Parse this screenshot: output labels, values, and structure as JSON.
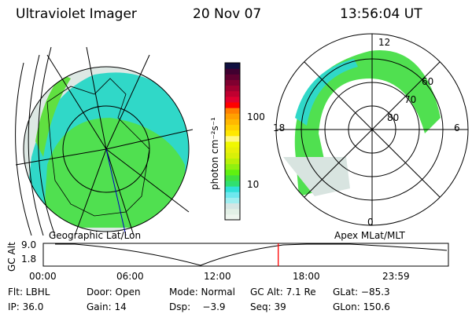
{
  "header": {
    "title": "Ultraviolet Imager",
    "date": "20 Nov 07",
    "time": "13:56:04 UT"
  },
  "colorbar": {
    "label": "photon cm⁻²s⁻¹",
    "ticks": [
      "100",
      "10"
    ],
    "colors": [
      "#eef5ee",
      "#e2f0e6",
      "#d4e6e4",
      "#9eeef0",
      "#6ee8ee",
      "#30e0d8",
      "#30e070",
      "#40e040",
      "#60f010",
      "#90f010",
      "#b8f008",
      "#d8f008",
      "#e8f008",
      "#f0f800",
      "#fff880",
      "#ffe800",
      "#ffd000",
      "#ffb800",
      "#ffa000",
      "#ff8000",
      "#ff0000",
      "#e00030",
      "#c00030",
      "#a00030",
      "#800030",
      "#600030",
      "#400030",
      "#101040"
    ]
  },
  "left_panel": {
    "label": "Geographic Lat/Lon"
  },
  "right_panel": {
    "label": "Apex MLat/MLT",
    "mlt_labels": [
      "12",
      "18",
      "6",
      "0"
    ],
    "mlat_labels": [
      "60",
      "70",
      "80"
    ]
  },
  "altitude_plot": {
    "ylabel": "GC Alt",
    "yticks": [
      "9.0",
      "1.8"
    ],
    "xticks": [
      "00:00",
      "06:00",
      "12:00",
      "18:00",
      "23:59"
    ],
    "current_time_fraction": 0.58,
    "marker_color": "#ff0000"
  },
  "status": {
    "row1": [
      "Flt: LBHL",
      "Door: Open",
      "Mode: Normal",
      "GC Alt: 7.1 Re",
      "GLat: −85.3"
    ],
    "row2": [
      "IP: 36.0",
      "Gain: 14",
      "Dsp:    −3.9",
      "Seq: 39",
      "GLon: 150.6"
    ]
  }
}
